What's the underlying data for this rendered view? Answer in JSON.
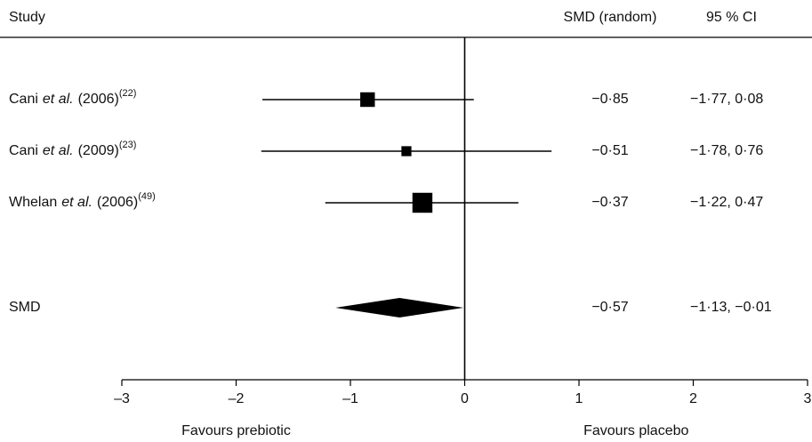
{
  "chart_data": {
    "type": "forest",
    "headers": {
      "study": "Study",
      "estimate": "SMD (random)",
      "ci": "95 % CI"
    },
    "studies": [
      {
        "author": "Cani",
        "etal": "et al.",
        "year": "(2006)",
        "ref": "(22)"
      },
      {
        "author": "Cani",
        "etal": "et al.",
        "year": "(2009)",
        "ref": "(23)"
      },
      {
        "author": "Whelan",
        "etal": "et al.",
        "year": "(2006)",
        "ref": "(49)"
      }
    ],
    "values": [
      -0.85,
      -0.51,
      -0.37
    ],
    "value_labels": [
      "−0·85",
      "−0·51",
      "−0·37"
    ],
    "ci_lower": [
      -1.77,
      -1.78,
      -1.22
    ],
    "ci_upper": [
      0.08,
      0.76,
      0.47
    ],
    "ci_labels": [
      "−1·77, 0·08",
      "−1·78, 0·76",
      "−1·22, 0·47"
    ],
    "weights": [
      30,
      14,
      56
    ],
    "pooled": {
      "label": "SMD",
      "value": -0.57,
      "value_label": "−0·57",
      "ci_lower": -1.13,
      "ci_upper": -0.01,
      "ci_label": "−1·13, −0·01"
    },
    "xlim": [
      -3,
      3
    ],
    "xticks": [
      {
        "value": -3,
        "label": "–3"
      },
      {
        "value": -2,
        "label": "–2"
      },
      {
        "value": -1,
        "label": "–1"
      },
      0,
      1,
      2,
      3
    ],
    "xlabels": [
      "Favours prebiotic",
      "Favours placebo"
    ],
    "color": "#000000"
  }
}
